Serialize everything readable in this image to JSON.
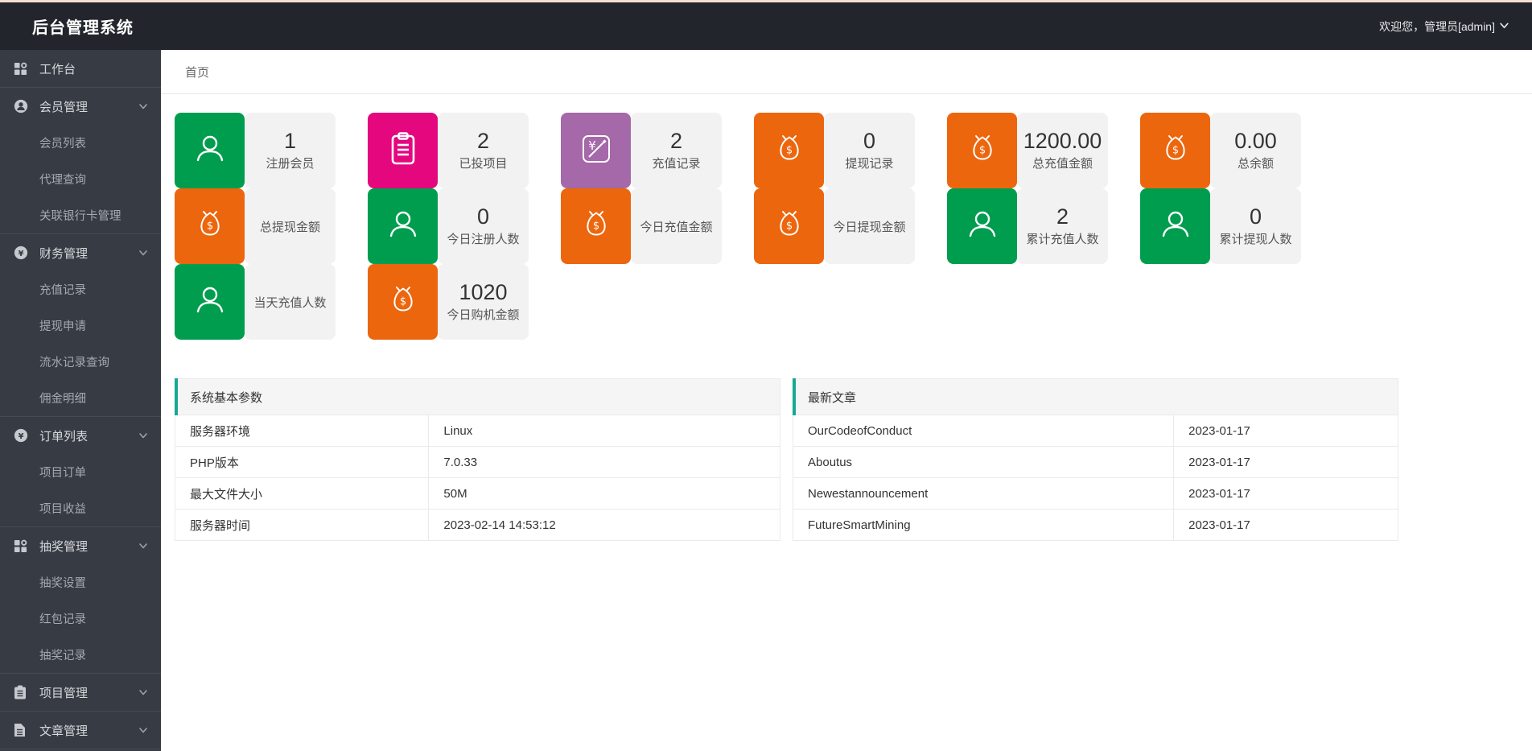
{
  "colors": {
    "green": "#009D4F",
    "orange": "#EC660D",
    "magenta": "#E4077E",
    "purple": "#A568A8",
    "teal_accent": "#16A992",
    "topbar_bg": "#22252C",
    "sidebar_bg": "#373B43",
    "top_line": "#F8DED2"
  },
  "topbar": {
    "title": "后台管理系统",
    "welcome": "欢迎您，管理员[admin]"
  },
  "breadcrumb": {
    "home": "首页"
  },
  "sidebar": {
    "items": [
      {
        "key": "workbench",
        "label": "工作台",
        "icon": "grid",
        "children": []
      },
      {
        "key": "member-management",
        "label": "会员管理",
        "icon": "user-circle",
        "children": [
          {
            "key": "member-list",
            "label": "会员列表"
          },
          {
            "key": "agent-query",
            "label": "代理查询"
          },
          {
            "key": "bank-card-management",
            "label": "关联银行卡管理"
          }
        ]
      },
      {
        "key": "finance-management",
        "label": "财务管理",
        "icon": "money-circle",
        "children": [
          {
            "key": "recharge-records",
            "label": "充值记录"
          },
          {
            "key": "withdrawal-requests",
            "label": "提现申请"
          },
          {
            "key": "transaction-records",
            "label": "流水记录查询"
          },
          {
            "key": "commission-details",
            "label": "佣金明细"
          }
        ]
      },
      {
        "key": "order-list",
        "label": "订单列表",
        "icon": "money-circle",
        "children": [
          {
            "key": "project-orders",
            "label": "项目订单"
          },
          {
            "key": "project-earnings",
            "label": "项目收益"
          }
        ]
      },
      {
        "key": "lottery-management",
        "label": "抽奖管理",
        "icon": "grid",
        "children": [
          {
            "key": "lottery-settings",
            "label": "抽奖设置"
          },
          {
            "key": "red-packet-records",
            "label": "红包记录"
          },
          {
            "key": "lottery-records",
            "label": "抽奖记录"
          }
        ]
      },
      {
        "key": "project-management",
        "label": "项目管理",
        "icon": "clipboard-side",
        "children": []
      },
      {
        "key": "article-management",
        "label": "文章管理",
        "icon": "file-side",
        "children": []
      }
    ]
  },
  "stat_cards": [
    {
      "rows": [
        {
          "icon": "person",
          "color_key": "green",
          "value": "1",
          "label": "注册会员"
        },
        {
          "icon": "moneybag",
          "color_key": "orange",
          "value": "",
          "label": "总提现金额"
        },
        {
          "icon": "person",
          "color_key": "green",
          "value": "",
          "label": "当天充值人数"
        }
      ]
    },
    {
      "rows": [
        {
          "icon": "clipboard",
          "color_key": "magenta",
          "value": "2",
          "label": "已投项目"
        },
        {
          "icon": "person",
          "color_key": "green",
          "value": "0",
          "label": "今日注册人数"
        },
        {
          "icon": "moneybag",
          "color_key": "orange",
          "value": "1020",
          "label": "今日购机金额"
        }
      ]
    },
    {
      "rows": [
        {
          "icon": "recharge",
          "color_key": "purple",
          "value": "2",
          "label": "充值记录"
        },
        {
          "icon": "moneybag",
          "color_key": "orange",
          "value": "",
          "label": "今日充值金额"
        }
      ]
    },
    {
      "rows": [
        {
          "icon": "moneybag",
          "color_key": "orange",
          "value": "0",
          "label": "提现记录"
        },
        {
          "icon": "moneybag",
          "color_key": "orange",
          "value": "",
          "label": "今日提现金额"
        }
      ]
    },
    {
      "rows": [
        {
          "icon": "moneybag",
          "color_key": "orange",
          "value": "1200.00",
          "label": "总充值金额"
        },
        {
          "icon": "person",
          "color_key": "green",
          "value": "2",
          "label": "累计充值人数"
        }
      ]
    },
    {
      "rows": [
        {
          "icon": "moneybag",
          "color_key": "orange",
          "value": "0.00",
          "label": "总余额"
        },
        {
          "icon": "person",
          "color_key": "green",
          "value": "0",
          "label": "累计提现人数"
        }
      ]
    }
  ],
  "system_panel": {
    "title": "系统基本参数",
    "rows": [
      {
        "label": "服务器环境",
        "value": "Linux"
      },
      {
        "label": "PHP版本",
        "value": "7.0.33"
      },
      {
        "label": "最大文件大小",
        "value": "50M"
      },
      {
        "label": "服务器时间",
        "value": "2023-02-14 14:53:12"
      }
    ]
  },
  "articles_panel": {
    "title": "最新文章",
    "rows": [
      {
        "title": "OurCodeofConduct",
        "date": "2023-01-17"
      },
      {
        "title": "Aboutus",
        "date": "2023-01-17"
      },
      {
        "title": "Newestannouncement",
        "date": "2023-01-17"
      },
      {
        "title": "FutureSmartMining",
        "date": "2023-01-17"
      }
    ]
  }
}
